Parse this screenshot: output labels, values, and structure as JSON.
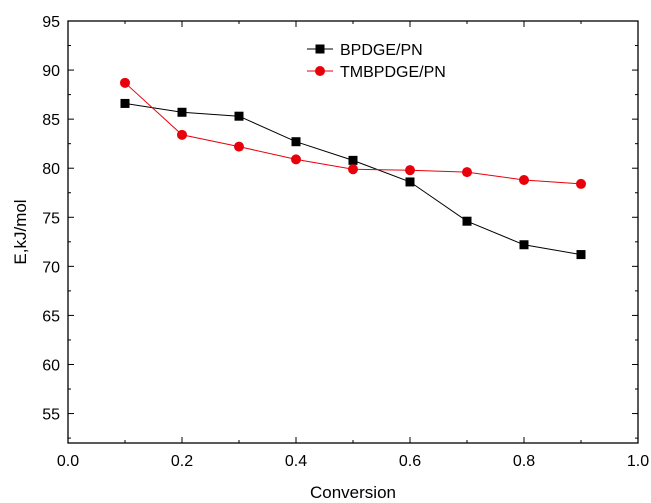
{
  "chart_data": {
    "type": "line",
    "title": "",
    "xlabel": "Conversion",
    "ylabel": "E,kJ/mol",
    "xlim": [
      0.0,
      1.0
    ],
    "ylim": [
      52,
      95
    ],
    "x_ticks": [
      0.0,
      0.2,
      0.4,
      0.6,
      0.8,
      1.0
    ],
    "x_tick_labels": [
      "0.0",
      "0.2",
      "0.4",
      "0.6",
      "0.8",
      "1.0"
    ],
    "y_ticks": [
      55,
      60,
      65,
      70,
      75,
      80,
      85,
      90,
      95
    ],
    "y_tick_labels": [
      "55",
      "60",
      "65",
      "70",
      "75",
      "80",
      "85",
      "90",
      "95"
    ],
    "grid": false,
    "legend_position": "top-center",
    "x": [
      0.1,
      0.2,
      0.3,
      0.4,
      0.5,
      0.6,
      0.7,
      0.8,
      0.9
    ],
    "series": [
      {
        "name": "BPDGE/PN",
        "marker": "square",
        "color": "#000000",
        "values": [
          86.6,
          85.7,
          85.3,
          82.7,
          80.8,
          78.6,
          74.6,
          72.2,
          71.2
        ]
      },
      {
        "name": "TMBPDGE/PN",
        "marker": "circle",
        "color": "#e8000b",
        "values": [
          88.7,
          83.4,
          82.2,
          80.9,
          79.9,
          79.8,
          79.6,
          78.8,
          78.4
        ]
      }
    ]
  }
}
